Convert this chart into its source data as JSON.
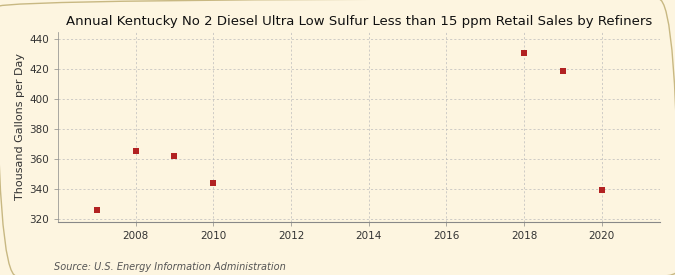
{
  "title": "Annual Kentucky No 2 Diesel Ultra Low Sulfur Less than 15 ppm Retail Sales by Refiners",
  "ylabel": "Thousand Gallons per Day",
  "source": "Source: U.S. Energy Information Administration",
  "x_values": [
    2007,
    2008,
    2009,
    2010,
    2018,
    2019,
    2020
  ],
  "y_values": [
    326,
    365,
    362,
    344,
    431,
    419,
    339
  ],
  "xlim": [
    2006.0,
    2021.5
  ],
  "ylim": [
    318,
    445
  ],
  "yticks": [
    320,
    340,
    360,
    380,
    400,
    420,
    440
  ],
  "xticks": [
    2008,
    2010,
    2012,
    2014,
    2016,
    2018,
    2020
  ],
  "marker_color": "#b22222",
  "marker": "s",
  "marker_size": 4,
  "bg_color": "#fdf5e0",
  "grid_color": "#bbbbbb",
  "title_fontsize": 9.5,
  "label_fontsize": 8,
  "tick_fontsize": 7.5,
  "source_fontsize": 7,
  "border_color": "#c8b882"
}
